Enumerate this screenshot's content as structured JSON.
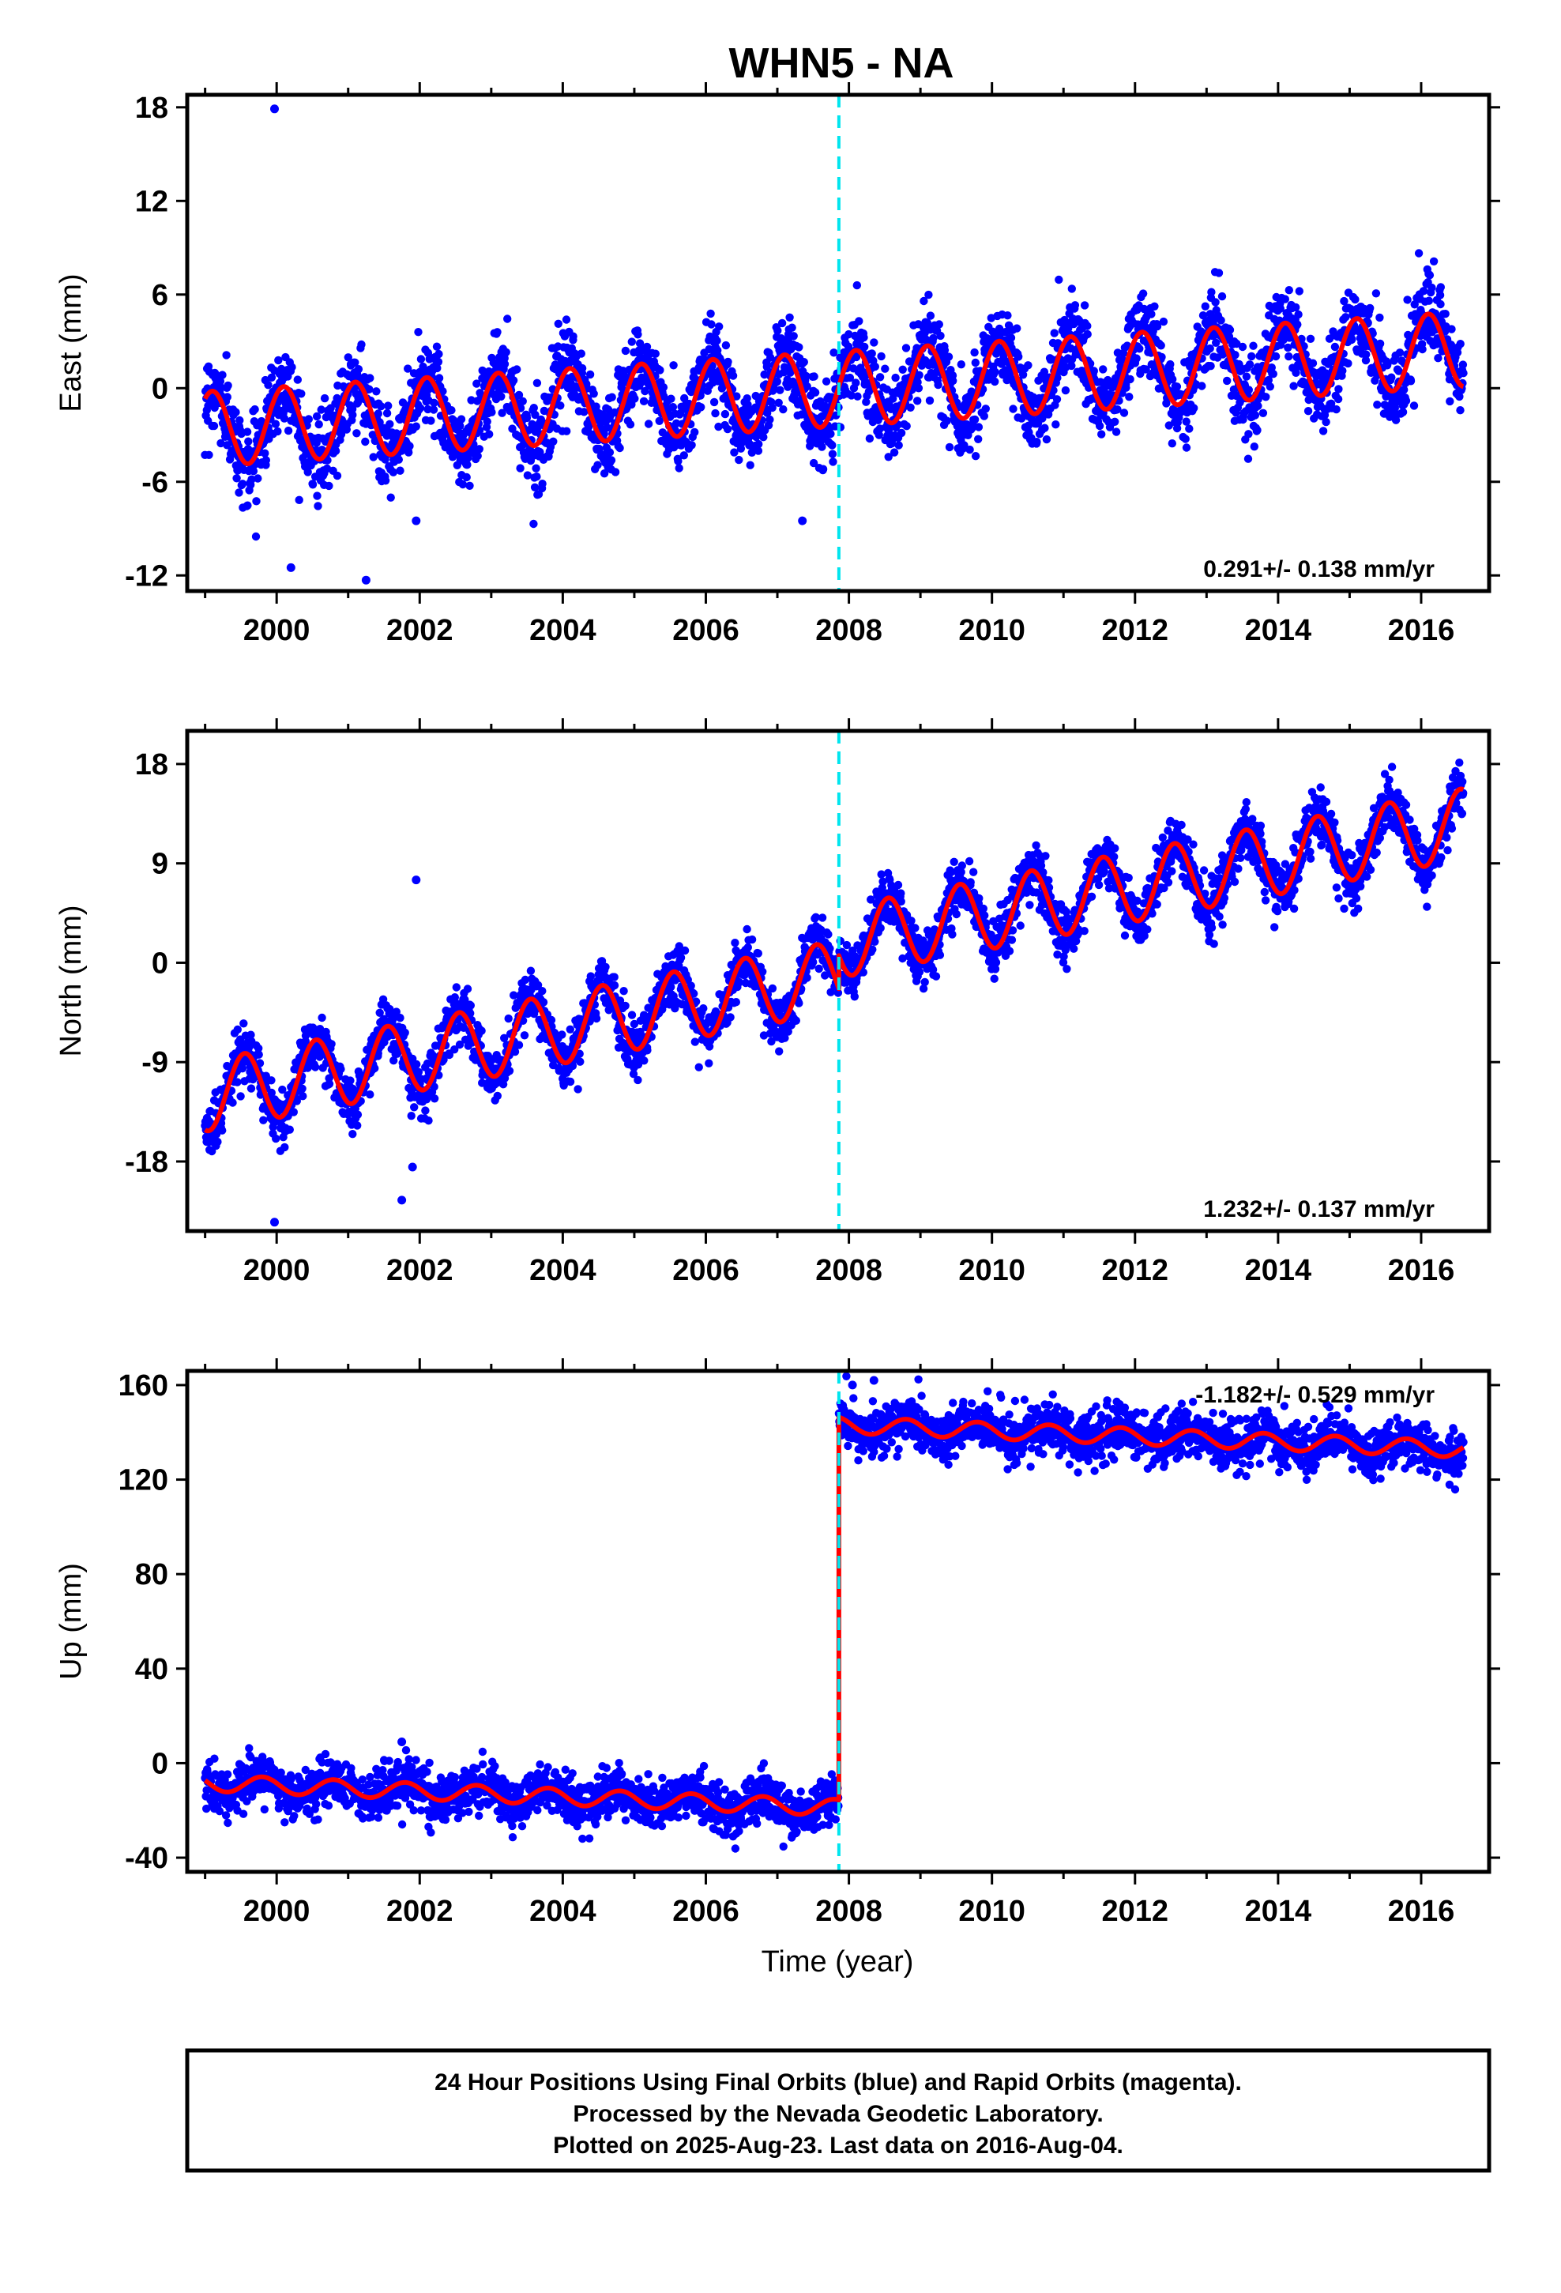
{
  "chart_data": {
    "type": "scatter",
    "title": "WHN5 - NA",
    "xlabel": "Time (year)",
    "xlim": [
      1998.75,
      2016.95
    ],
    "x_ticks": [
      "2000",
      "2002",
      "2004",
      "2006",
      "2008",
      "2010",
      "2012",
      "2014",
      "2016"
    ],
    "x_tick_values": [
      2000,
      2002,
      2004,
      2006,
      2008,
      2010,
      2012,
      2014,
      2016
    ],
    "data_start": 1999.0,
    "data_end": 2016.59,
    "offset_epoch": 2007.86,
    "colors": {
      "data": "#0000ff",
      "model": "#ff0000",
      "offset": "#00e5ee",
      "frame": "#000000"
    },
    "panels": [
      {
        "name": "east",
        "ylabel": "East (mm)",
        "ylim": [
          -13.0,
          18.8
        ],
        "y_ticks": [
          "18",
          "12",
          "6",
          "0",
          "-6",
          "-12"
        ],
        "y_tick_values": [
          18,
          12,
          6,
          0,
          -6,
          -12
        ],
        "rate_text": "0.291+/- 0.138 mm/yr",
        "rate_position": "bottom-right",
        "model": {
          "intercept_2008": 0.0,
          "rate": 0.291,
          "annual_amp": 2.4,
          "annual_phase_year": 0.1,
          "step": 0.0,
          "noise_sd": 1.3
        },
        "outliers": [
          [
            1999.97,
            17.9
          ],
          [
            2000.2,
            -11.5
          ],
          [
            2001.25,
            -12.3
          ],
          [
            2001.95,
            -8.5
          ],
          [
            2007.35,
            -8.5
          ]
        ]
      },
      {
        "name": "north",
        "ylabel": "North (mm)",
        "ylim": [
          -24.3,
          21.0
        ],
        "y_ticks": [
          "18",
          "9",
          "0",
          "-9",
          "-18"
        ],
        "y_tick_values": [
          18,
          9,
          0,
          -9,
          -18
        ],
        "rate_text": "1.232+/- 0.137 mm/yr",
        "rate_position": "bottom-right",
        "model": {
          "intercept_2008": -1.0,
          "rate": 1.232,
          "annual_amp": 3.2,
          "annual_phase_year": 0.55,
          "step": 3.0,
          "noise_sd": 1.2
        },
        "outliers": [
          [
            1999.97,
            -23.5
          ],
          [
            2001.95,
            7.5
          ],
          [
            2001.75,
            -21.5
          ],
          [
            2001.9,
            -18.5
          ]
        ]
      },
      {
        "name": "up",
        "ylabel": "Up (mm)",
        "ylim": [
          -46.0,
          166.0
        ],
        "y_ticks": [
          "160",
          "120",
          "80",
          "40",
          "0",
          "-40"
        ],
        "y_tick_values": [
          160,
          120,
          80,
          40,
          0,
          -40
        ],
        "rate_text": "-1.182+/- 0.529 mm/yr",
        "rate_position": "top-right",
        "model": {
          "intercept_2008": -19.0,
          "rate": -1.182,
          "annual_amp": 3.5,
          "annual_phase_year": 0.8,
          "step": 162.0,
          "noise_sd": 5.0
        },
        "outliers": [
          [
            2001.75,
            9.0
          ],
          [
            2008.35,
            162.0
          ],
          [
            2008.05,
            160.0
          ]
        ]
      }
    ]
  },
  "footer": {
    "line1": "24 Hour Positions Using Final Orbits (blue) and Rapid Orbits (magenta).",
    "line2": "Processed by the Nevada Geodetic Laboratory.",
    "line3": "Plotted on 2025-Aug-23. Last data on 2016-Aug-04."
  }
}
